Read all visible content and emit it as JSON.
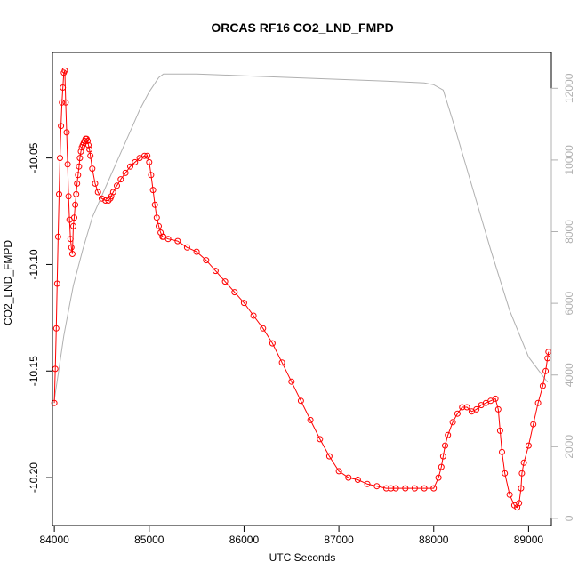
{
  "chart_data": {
    "type": "line",
    "title": "ORCAS RF16 CO2_LND_FMPD",
    "xlabel": "UTC Seconds",
    "ylabel": "CO2_LND_FMPD",
    "xlim": [
      83980,
      89240
    ],
    "ylim": [
      -10.2225,
      -10.0005
    ],
    "y2lim": [
      -200,
      13000
    ],
    "xticks": [
      84000,
      85000,
      86000,
      87000,
      88000,
      89000
    ],
    "xtick_labels": [
      "84000",
      "85000",
      "86000",
      "87000",
      "88000",
      "89000"
    ],
    "yticks": [
      -10.2,
      -10.15,
      -10.1,
      -10.05
    ],
    "ytick_labels": [
      "-10.20",
      "-10.15",
      "-10.10",
      "-10.05"
    ],
    "y2ticks": [
      0,
      2000,
      4000,
      6000,
      8000,
      10000,
      12000
    ],
    "y2tick_labels": [
      "0",
      "2000",
      "4000",
      "6000",
      "8000",
      "10000",
      "12000"
    ],
    "series": [
      {
        "axis": "left",
        "marker": "circle",
        "color": "#ff0000",
        "x": [
          84000,
          84010,
          84020,
          84030,
          84040,
          84050,
          84060,
          84070,
          84080,
          84090,
          84100,
          84110,
          84120,
          84130,
          84140,
          84150,
          84160,
          84170,
          84180,
          84190,
          84200,
          84210,
          84220,
          84230,
          84240,
          84250,
          84260,
          84270,
          84280,
          84290,
          84300,
          84310,
          84320,
          84330,
          84340,
          84350,
          84360,
          84370,
          84380,
          84400,
          84430,
          84460,
          84500,
          84540,
          84570,
          84590,
          84600,
          84620,
          84660,
          84700,
          84750,
          84800,
          84850,
          84900,
          84950,
          84980,
          85000,
          85020,
          85040,
          85060,
          85080,
          85100,
          85120,
          85140,
          85150,
          85200,
          85300,
          85400,
          85500,
          85600,
          85700,
          85800,
          85900,
          86000,
          86100,
          86200,
          86300,
          86400,
          86500,
          86600,
          86700,
          86800,
          86900,
          87000,
          87100,
          87200,
          87300,
          87400,
          87500,
          87550,
          87600,
          87700,
          87800,
          87900,
          88000,
          88050,
          88080,
          88100,
          88120,
          88150,
          88200,
          88250,
          88300,
          88350,
          88400,
          88450,
          88500,
          88550,
          88600,
          88650,
          88680,
          88700,
          88720,
          88750,
          88800,
          88850,
          88880,
          88900,
          88920,
          88930,
          88950,
          89000,
          89050,
          89100,
          89150,
          89180,
          89200,
          89210
        ],
        "y": [
          -10.165,
          -10.149,
          -10.13,
          -10.109,
          -10.087,
          -10.067,
          -10.05,
          -10.035,
          -10.024,
          -10.017,
          -10.01,
          -10.009,
          -10.024,
          -10.038,
          -10.053,
          -10.068,
          -10.079,
          -10.088,
          -10.092,
          -10.095,
          -10.082,
          -10.078,
          -10.072,
          -10.067,
          -10.062,
          -10.058,
          -10.054,
          -10.05,
          -10.047,
          -10.045,
          -10.044,
          -10.043,
          -10.042,
          -10.041,
          -10.041,
          -10.042,
          -10.044,
          -10.046,
          -10.049,
          -10.055,
          -10.062,
          -10.066,
          -10.069,
          -10.07,
          -10.07,
          -10.069,
          -10.068,
          -10.066,
          -10.063,
          -10.06,
          -10.057,
          -10.054,
          -10.052,
          -10.05,
          -10.049,
          -10.049,
          -10.052,
          -10.058,
          -10.065,
          -10.072,
          -10.078,
          -10.082,
          -10.085,
          -10.087,
          -10.087,
          -10.088,
          -10.089,
          -10.092,
          -10.094,
          -10.098,
          -10.103,
          -10.108,
          -10.113,
          -10.118,
          -10.124,
          -10.13,
          -10.137,
          -10.146,
          -10.155,
          -10.164,
          -10.173,
          -10.182,
          -10.19,
          -10.197,
          -10.2,
          -10.201,
          -10.203,
          -10.204,
          -10.205,
          -10.205,
          -10.205,
          -10.205,
          -10.205,
          -10.205,
          -10.205,
          -10.2,
          -10.195,
          -10.19,
          -10.185,
          -10.18,
          -10.174,
          -10.17,
          -10.167,
          -10.167,
          -10.169,
          -10.168,
          -10.166,
          -10.165,
          -10.164,
          -10.163,
          -10.168,
          -10.178,
          -10.188,
          -10.198,
          -10.208,
          -10.213,
          -10.214,
          -10.212,
          -10.205,
          -10.198,
          -10.193,
          -10.185,
          -10.175,
          -10.165,
          -10.157,
          -10.15,
          -10.144,
          -10.141
        ]
      },
      {
        "axis": "right",
        "marker": "none",
        "color": "#b0b0b0",
        "x": [
          84000,
          84050,
          84100,
          84150,
          84200,
          84300,
          84400,
          84500,
          84600,
          84700,
          84800,
          84900,
          85000,
          85100,
          85150,
          85500,
          86000,
          86500,
          87000,
          87500,
          87900,
          88000,
          88100,
          88200,
          88400,
          88600,
          88800,
          89000,
          89200
        ],
        "y": [
          3300,
          4200,
          5100,
          5800,
          6500,
          7500,
          8400,
          9000,
          9600,
          10200,
          10800,
          11400,
          11900,
          12300,
          12400,
          12400,
          12350,
          12300,
          12250,
          12200,
          12150,
          12100,
          11950,
          11100,
          9300,
          7500,
          5800,
          4500,
          3800
        ]
      }
    ]
  }
}
